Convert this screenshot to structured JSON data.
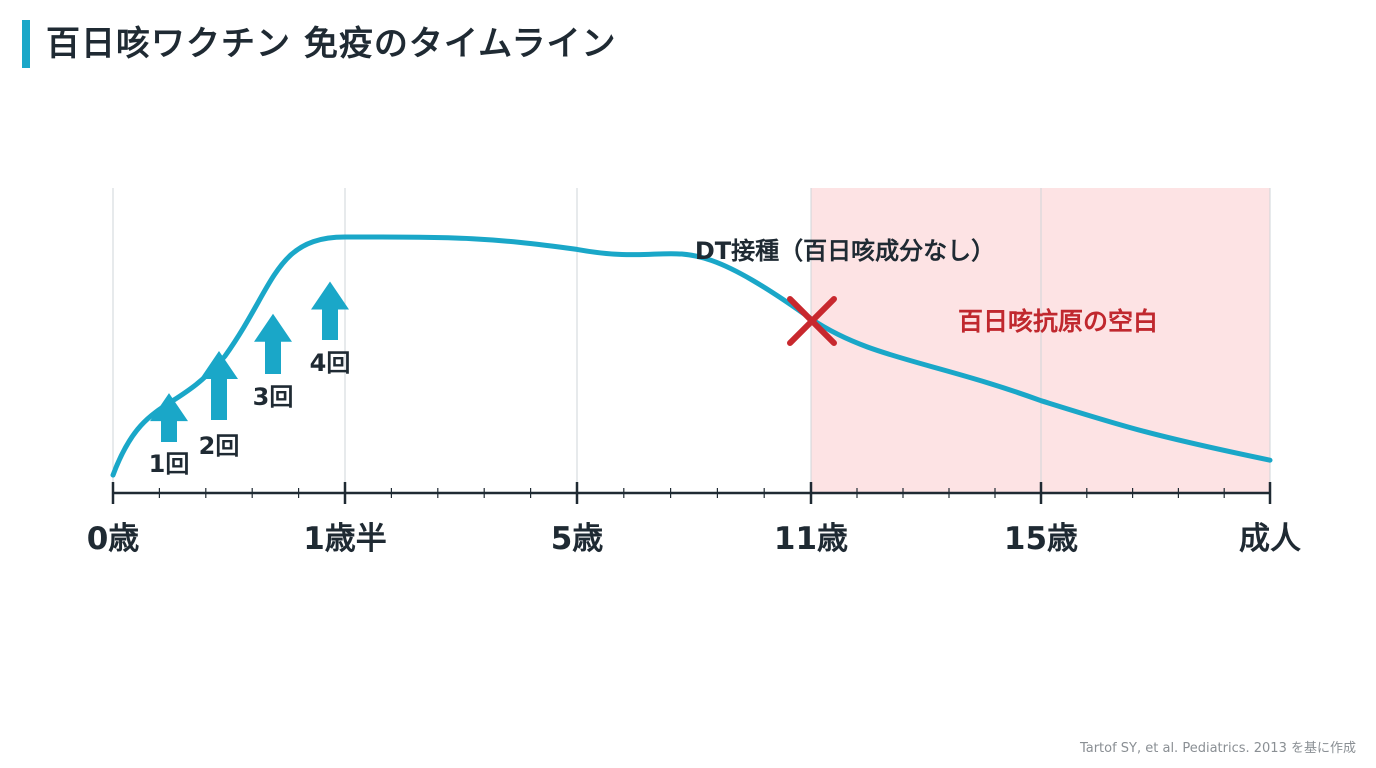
{
  "title": "百日咳ワクチン 免疫のタイムライン",
  "citation": "Tartof SY, et al. Pediatrics. 2013 を基に作成",
  "chart_data": {
    "type": "line",
    "title": "百日咳ワクチン 免疫のタイムライン",
    "xlabel": "",
    "ylabel": "",
    "x_ticks": [
      "0歳",
      "1歳半",
      "5歳",
      "11歳",
      "15歳",
      "成人"
    ],
    "grid": true,
    "series": [
      {
        "color": "#1aa7c8",
        "points": [
          {
            "x": "0歳",
            "y": 0.04
          },
          {
            "x": "0.5歳",
            "y": 0.52
          },
          {
            "x": "1歳半",
            "y": 1.0
          },
          {
            "x": "5歳",
            "y": 0.95
          },
          {
            "x": "11歳",
            "y": 0.67
          },
          {
            "x": "15歳",
            "y": 0.34
          },
          {
            "x": "成人",
            "y": 0.1
          }
        ]
      }
    ],
    "doses": [
      {
        "label": "1回",
        "level": 0.33
      },
      {
        "label": "2回",
        "level": 0.5
      },
      {
        "label": "3回",
        "level": 0.65
      },
      {
        "label": "4回",
        "level": 0.78
      }
    ],
    "annotations": {
      "dt_label": "DT接種（百日咳成分なし）",
      "gap_label": "百日咳抗原の空白",
      "gap_range": [
        "11歳",
        "成人"
      ],
      "gap_color": "#fde3e4",
      "marker_color": "#c8282e",
      "gap_text_color": "#c0282e",
      "arrow_color": "#1aa7c8"
    }
  }
}
